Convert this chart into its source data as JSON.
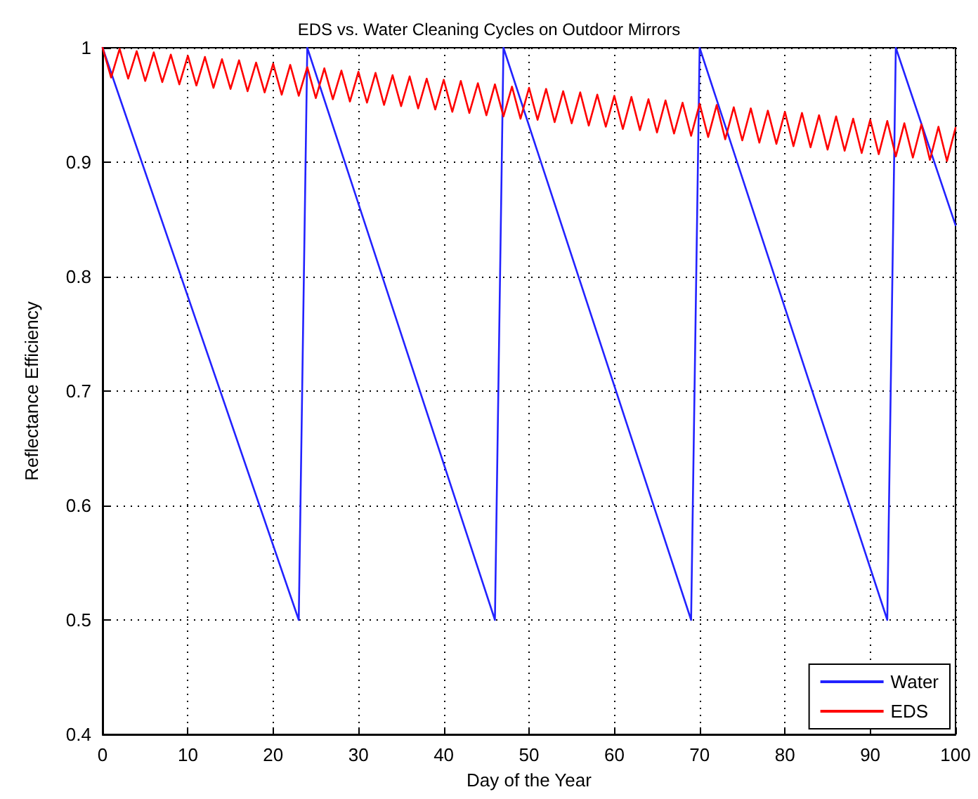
{
  "chart_data": {
    "type": "line",
    "title": "EDS vs. Water Cleaning Cycles on Outdoor Mirrors",
    "xlabel": "Day of the Year",
    "ylabel": "Reflectance Efficiency",
    "xlim": [
      0,
      100
    ],
    "xticks": [
      0,
      10,
      20,
      30,
      40,
      50,
      60,
      70,
      80,
      90,
      100
    ],
    "ylim": [
      0.4,
      1
    ],
    "yticks": [
      0.4,
      0.5,
      0.6,
      0.7,
      0.8,
      0.9,
      1
    ],
    "grid": true,
    "legend": "bottom right",
    "marker": "none",
    "line_style": "solid",
    "series": [
      {
        "name": "Water",
        "color": "#2222ff",
        "x": [
          0,
          23,
          24,
          46,
          47,
          69,
          70,
          92,
          93,
          100
        ],
        "values": [
          1,
          0.5,
          1,
          0.5,
          1,
          0.5,
          1,
          0.5,
          1,
          0.845
        ]
      },
      {
        "name": "EDS",
        "color": "#ff0000",
        "x": [
          0,
          1,
          2,
          3,
          4,
          5,
          6,
          7,
          8,
          9,
          10,
          11,
          12,
          13,
          14,
          15,
          16,
          17,
          18,
          19,
          20,
          21,
          22,
          23,
          24,
          25,
          26,
          27,
          28,
          29,
          30,
          31,
          32,
          33,
          34,
          35,
          36,
          37,
          38,
          39,
          40,
          41,
          42,
          43,
          44,
          45,
          46,
          47,
          48,
          49,
          50,
          51,
          52,
          53,
          54,
          55,
          56,
          57,
          58,
          59,
          60,
          61,
          62,
          63,
          64,
          65,
          66,
          67,
          68,
          69,
          70,
          71,
          72,
          73,
          74,
          75,
          76,
          77,
          78,
          79,
          80,
          81,
          82,
          83,
          84,
          85,
          86,
          87,
          88,
          89,
          90,
          91,
          92,
          93,
          94,
          95,
          96,
          97,
          98,
          99,
          100
        ],
        "values": [
          1,
          0.974,
          0.999,
          0.973,
          0.997,
          0.971,
          0.996,
          0.97,
          0.994,
          0.968,
          0.993,
          0.967,
          0.992,
          0.965,
          0.99,
          0.964,
          0.989,
          0.962,
          0.987,
          0.961,
          0.986,
          0.959,
          0.985,
          0.958,
          0.983,
          0.956,
          0.982,
          0.955,
          0.98,
          0.953,
          0.979,
          0.952,
          0.978,
          0.95,
          0.976,
          0.949,
          0.975,
          0.947,
          0.973,
          0.946,
          0.972,
          0.944,
          0.971,
          0.943,
          0.969,
          0.941,
          0.968,
          0.94,
          0.966,
          0.938,
          0.965,
          0.937,
          0.964,
          0.935,
          0.962,
          0.934,
          0.961,
          0.932,
          0.959,
          0.931,
          0.958,
          0.929,
          0.957,
          0.928,
          0.955,
          0.926,
          0.954,
          0.925,
          0.952,
          0.923,
          0.951,
          0.922,
          0.95,
          0.92,
          0.948,
          0.919,
          0.947,
          0.917,
          0.945,
          0.916,
          0.944,
          0.914,
          0.943,
          0.913,
          0.941,
          0.911,
          0.94,
          0.91,
          0.938,
          0.908,
          0.937,
          0.907,
          0.936,
          0.905,
          0.934,
          0.904,
          0.933,
          0.902,
          0.931,
          0.901,
          0.93
        ]
      }
    ]
  }
}
